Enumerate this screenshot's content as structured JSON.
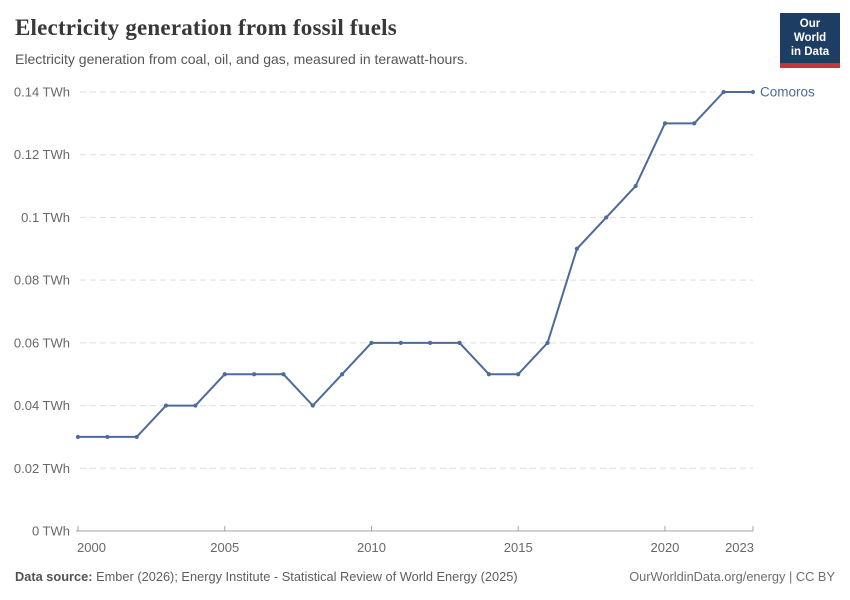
{
  "header": {
    "logo": {
      "line1": "Our World",
      "line2": "in Data"
    }
  },
  "chart_data": {
    "type": "line",
    "title": "Electricity generation from fossil fuels",
    "subtitle": "Electricity generation from coal, oil, and gas, measured in terawatt-hours.",
    "unit": "TWh",
    "xlabel": "",
    "ylabel": "",
    "xlim": [
      2000,
      2023
    ],
    "ylim": [
      0,
      0.14
    ],
    "grid": "horizontal-dashed",
    "legend_position": "line-end-label",
    "xticks": [
      2000,
      2005,
      2010,
      2015,
      2020,
      2023
    ],
    "xtick_labels": [
      "2000",
      "2005",
      "2010",
      "2015",
      "2020",
      "2023"
    ],
    "yticks": [
      0,
      0.02,
      0.04,
      0.06,
      0.08,
      0.1,
      0.12,
      0.14
    ],
    "ytick_labels": [
      "0 TWh",
      "0.02 TWh",
      "0.04 TWh",
      "0.06 TWh",
      "0.08 TWh",
      "0.1 TWh",
      "0.12 TWh",
      "0.14 TWh"
    ],
    "series": [
      {
        "name": "Comoros",
        "color": "#4C6A9C",
        "x": [
          2000,
          2001,
          2002,
          2003,
          2004,
          2005,
          2006,
          2007,
          2008,
          2009,
          2010,
          2011,
          2012,
          2013,
          2014,
          2015,
          2016,
          2017,
          2018,
          2019,
          2020,
          2021,
          2022,
          2023
        ],
        "values": [
          0.03,
          0.03,
          0.03,
          0.04,
          0.04,
          0.05,
          0.05,
          0.05,
          0.04,
          0.05,
          0.06,
          0.06,
          0.06,
          0.06,
          0.05,
          0.05,
          0.06,
          0.09,
          0.1,
          0.11,
          0.13,
          0.13,
          0.14,
          0.14
        ]
      }
    ]
  },
  "footer": {
    "source_label": "Data source:",
    "source_text": " Ember (2026); Energy Institute - Statistical Review of World Energy (2025)",
    "attribution": "OurWorldinData.org/energy | CC BY"
  },
  "colors": {
    "line": "#4C6A9C",
    "gridline": "#dedede",
    "axis": "#a3a3a3",
    "tick_text": "#686868",
    "title_text": "#383838",
    "logo_navy": "#1d3d63",
    "logo_red": "#c5353c"
  }
}
